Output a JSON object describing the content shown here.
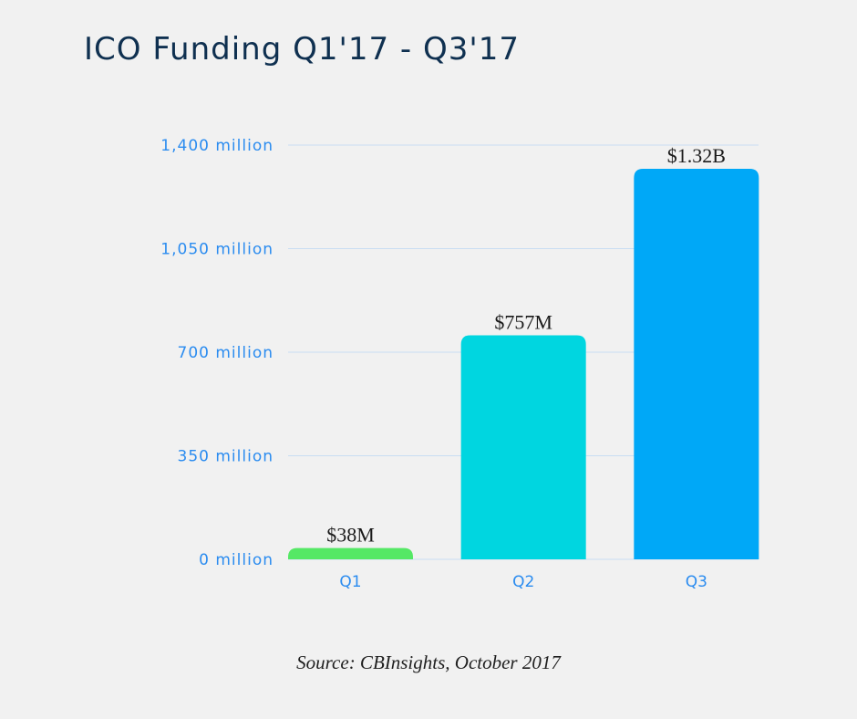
{
  "chart_data": {
    "type": "bar",
    "title": "ICO Funding Q1'17 - Q3'17",
    "xlabel": "",
    "ylabel": "",
    "categories": [
      "Q1",
      "Q2",
      "Q3"
    ],
    "values": [
      38,
      757,
      1320
    ],
    "value_unit": "million USD",
    "data_labels": [
      "$38M",
      "$757M",
      "$1.32B"
    ],
    "bar_colors": [
      "#55e865",
      "#00d6e0",
      "#00a8f7"
    ],
    "ylim": [
      0,
      1400
    ],
    "yticks": [
      0,
      350,
      700,
      1050,
      1400
    ],
    "ytick_labels": [
      "0 million",
      "350 million",
      "700 million",
      "1,050 million",
      "1,400 million"
    ],
    "grid": true,
    "grid_color": "#c9ddf2",
    "tick_color": "#2b8cf0",
    "title_color": "#0f3050",
    "legend": "none",
    "source": "Source: CBInsights, October 2017"
  }
}
